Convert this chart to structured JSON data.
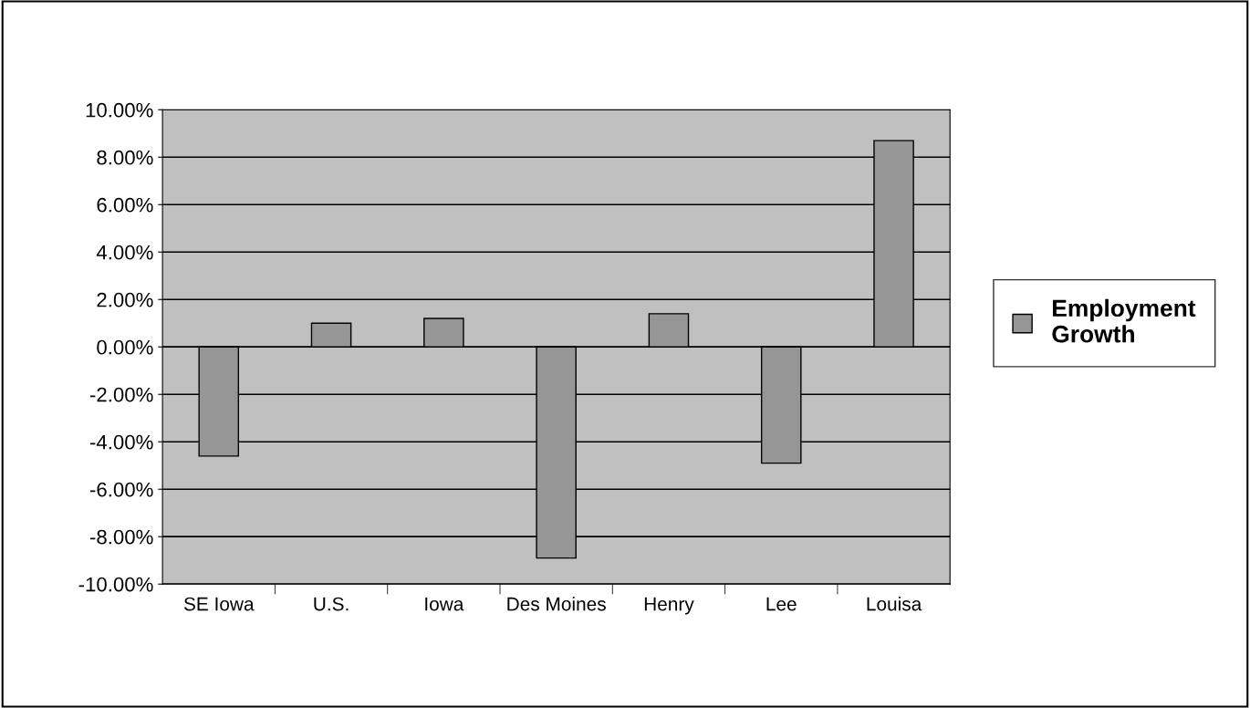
{
  "chart_data": {
    "type": "bar",
    "categories": [
      "SE Iowa",
      "U.S.",
      "Iowa",
      "Des Moines",
      "Henry",
      "Lee",
      "Louisa"
    ],
    "series": [
      {
        "name": "Employment Growth",
        "color": "#969696",
        "values": [
          -4.6,
          1.0,
          1.2,
          -8.9,
          1.4,
          -4.9,
          8.7
        ]
      }
    ],
    "ylim": [
      -10,
      10
    ],
    "yticks": [
      {
        "value": -10,
        "label": "-10.00%"
      },
      {
        "value": -8,
        "label": "-8.00%"
      },
      {
        "value": -6,
        "label": "-6.00%"
      },
      {
        "value": -4,
        "label": "-4.00%"
      },
      {
        "value": -2,
        "label": "-2.00%"
      },
      {
        "value": 0,
        "label": "0.00%"
      },
      {
        "value": 2,
        "label": "2.00%"
      },
      {
        "value": 4,
        "label": "4.00%"
      },
      {
        "value": 6,
        "label": "6.00%"
      },
      {
        "value": 8,
        "label": "8.00%"
      },
      {
        "value": 10,
        "label": "10.00%"
      }
    ],
    "grid": "y",
    "legend": "right"
  }
}
